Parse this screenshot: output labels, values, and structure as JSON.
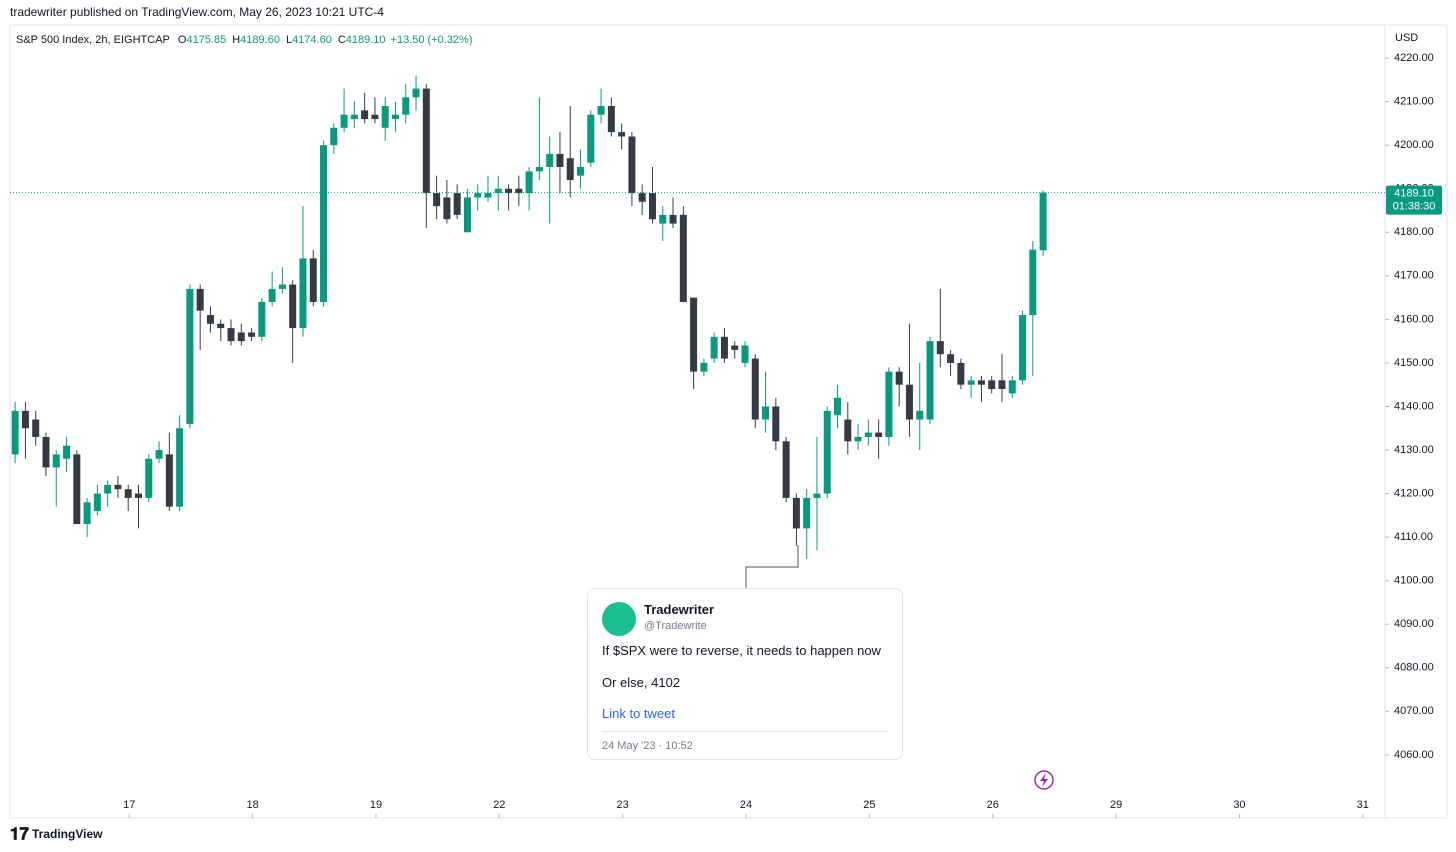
{
  "publisher": "tradewriter published on TradingView.com, May 26, 2023 10:21 UTC-4",
  "chart_data": {
    "type": "candlestick",
    "title": "S&P 500 Index, 2h, EIGHTCAP",
    "ohlc": [
      {
        "key": "O",
        "value": "4175.85"
      },
      {
        "key": "H",
        "value": "4189.60"
      },
      {
        "key": "L",
        "value": "4174.60"
      },
      {
        "key": "C",
        "value": "4189.10"
      }
    ],
    "change": "+13.50 (+0.32%)",
    "currency": "USD",
    "up_color": "#089981",
    "down_color": "#363a45",
    "open": [
      4129,
      4139,
      4137,
      4133,
      4126,
      4128,
      4129,
      4113,
      4116,
      4120,
      4122,
      4121,
      4120,
      4119,
      4128,
      4129,
      4117,
      4136,
      4167,
      4161,
      4159,
      4158,
      4157,
      4157,
      4156,
      4164,
      4167,
      4168,
      4158,
      4174,
      4164,
      4200,
      4204,
      4206,
      4208,
      4207,
      4204,
      4206,
      4207,
      4211,
      4213,
      4189,
      4188,
      4189,
      4180,
      4188,
      4188,
      4189,
      4190,
      4190,
      4189,
      4194,
      4195,
      4198,
      4197,
      4193,
      4196,
      4207,
      4209,
      4203,
      4202,
      4189,
      4189,
      4182,
      4184,
      4184,
      4165,
      4148,
      4151,
      4156,
      4154,
      4150,
      4151,
      4137,
      4140,
      4132,
      4119,
      4112,
      4119,
      4120,
      4138,
      4137,
      4132,
      4133,
      4134,
      4133,
      4148,
      4145,
      4137,
      4137,
      4155,
      4152,
      4150,
      4145,
      4146,
      4146,
      4146,
      4143,
      4146,
      4161,
      4175.85
    ],
    "high": [
      4141,
      4141,
      4139,
      4134,
      4130,
      4133,
      4130,
      4119,
      4122,
      4123,
      4124,
      4122,
      4122,
      4129,
      4132,
      4134,
      4138,
      4168,
      4168,
      4163,
      4160,
      4160,
      4159,
      4158,
      4165,
      4171,
      4172,
      4169,
      4186,
      4176,
      4201,
      4205,
      4213,
      4210,
      4212,
      4211,
      4211,
      4210,
      4214,
      4216,
      4214,
      4193,
      4192,
      4191,
      4190,
      4191,
      4193,
      4193,
      4191,
      4193,
      4195,
      4211,
      4202,
      4203,
      4209,
      4199,
      4208,
      4213,
      4211,
      4205,
      4203,
      4191,
      4195,
      4186,
      4188,
      4186,
      4165,
      4151,
      4157,
      4158,
      4155,
      4155,
      4152,
      4148,
      4142,
      4133,
      4120,
      4121,
      4133,
      4140,
      4145,
      4141,
      4136,
      4137,
      4137,
      4149,
      4149,
      4159,
      4150,
      4156,
      4167,
      4153,
      4151,
      4147,
      4147,
      4147,
      4152,
      4147,
      4162,
      4178,
      4189.6
    ],
    "low": [
      4127,
      4128,
      4131,
      4124,
      4117,
      4125,
      4113,
      4110,
      4115,
      4117,
      4119,
      4116,
      4112,
      4118,
      4127,
      4116,
      4116,
      4135,
      4153,
      4157,
      4155,
      4154,
      4154,
      4155,
      4155,
      4163,
      4166,
      4150,
      4156,
      4163,
      4163,
      4198,
      4203,
      4204,
      4205,
      4205,
      4201,
      4203,
      4205,
      4208,
      4181,
      4183,
      4182,
      4183,
      4180,
      4185,
      4187,
      4185,
      4185,
      4186,
      4185,
      4192,
      4182,
      4189,
      4188,
      4190,
      4195,
      4205,
      4202,
      4199,
      4186,
      4184,
      4182,
      4178,
      4181,
      4164,
      4144,
      4147,
      4150,
      4150,
      4151,
      4149,
      4135,
      4134,
      4130,
      4118,
      4108,
      4105,
      4107,
      4119,
      4135,
      4129,
      4130,
      4131,
      4128,
      4131,
      4140,
      4133,
      4130,
      4136,
      4149,
      4147,
      4144,
      4142,
      4141,
      4143,
      4141,
      4142,
      4145,
      4147,
      4174.6
    ],
    "close": [
      4139,
      4135,
      4133,
      4126,
      4129,
      4131,
      4113,
      4118,
      4120,
      4122,
      4121,
      4119,
      4119,
      4128,
      4130,
      4117,
      4135,
      4167,
      4162,
      4159,
      4158,
      4155,
      4155,
      4156,
      4164,
      4167,
      4168,
      4158,
      4174,
      4164,
      4200,
      4204,
      4207,
      4207,
      4206,
      4206,
      4209,
      4207,
      4211,
      4213,
      4189,
      4186,
      4183,
      4184,
      4188,
      4189,
      4189,
      4190,
      4189,
      4189,
      4194,
      4195,
      4198,
      4195,
      4192,
      4195,
      4207,
      4209,
      4203,
      4202,
      4189,
      4187,
      4183,
      4184,
      4182,
      4164,
      4148,
      4150,
      4156,
      4151,
      4153,
      4154,
      4137,
      4140,
      4132,
      4119,
      4112,
      4119,
      4120,
      4139,
      4142,
      4132,
      4133,
      4134,
      4133,
      4148,
      4145,
      4137,
      4139,
      4155,
      4152,
      4150,
      4145,
      4146,
      4145,
      4144,
      4144,
      4146,
      4161,
      4176,
      4189.1
    ],
    "xlim": [
      -0.5,
      133.26
    ],
    "xticks": [
      {
        "value": 11.1,
        "label": "17"
      },
      {
        "value": 23.1,
        "label": "18"
      },
      {
        "value": 35.1,
        "label": "19"
      },
      {
        "value": 47.1,
        "label": "22"
      },
      {
        "value": 59.1,
        "label": "23"
      },
      {
        "value": 71.1,
        "label": "24"
      },
      {
        "value": 83.1,
        "label": "25"
      },
      {
        "value": 95.1,
        "label": "26"
      },
      {
        "value": 107.1,
        "label": "29"
      },
      {
        "value": 119.1,
        "label": "30"
      },
      {
        "value": 131.1,
        "label": "31"
      }
    ],
    "ylim": [
      4045.5,
      4227.6
    ],
    "yticks": [
      {
        "value": 4060,
        "label": "4060.00"
      },
      {
        "value": 4070,
        "label": "4070.00"
      },
      {
        "value": 4080,
        "label": "4080.00"
      },
      {
        "value": 4090,
        "label": "4090.00"
      },
      {
        "value": 4100,
        "label": "4100.00"
      },
      {
        "value": 4110,
        "label": "4110.00"
      },
      {
        "value": 4120,
        "label": "4120.00"
      },
      {
        "value": 4130,
        "label": "4130.00"
      },
      {
        "value": 4140,
        "label": "4140.00"
      },
      {
        "value": 4150,
        "label": "4150.00"
      },
      {
        "value": 4160,
        "label": "4160.00"
      },
      {
        "value": 4170,
        "label": "4170.00"
      },
      {
        "value": 4180,
        "label": "4180.00"
      },
      {
        "value": 4190,
        "label": "4190.00"
      },
      {
        "value": 4200,
        "label": "4200.00"
      },
      {
        "value": 4210,
        "label": "4210.00"
      },
      {
        "value": 4220,
        "label": "4220.00"
      }
    ],
    "price_line": {
      "value": 4189.1,
      "label": "4189.10",
      "countdown": "01:38:30"
    }
  },
  "tweet": {
    "name": "Tradewriter",
    "handle": "@Tradewrite",
    "text": "If $SPX were to reverse, it needs to happen now",
    "text2": "Or else, 4102",
    "link": "Link to tweet",
    "date": "24 May '23 · 10:52"
  },
  "footer": "TradingView"
}
